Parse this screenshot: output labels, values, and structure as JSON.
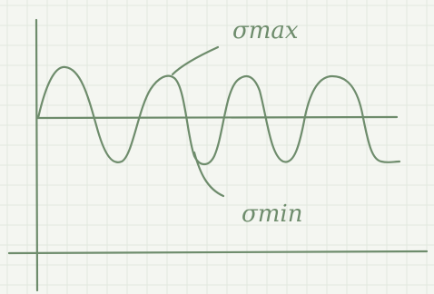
{
  "labels": {
    "max": "σmax",
    "min": "σmin"
  }
}
